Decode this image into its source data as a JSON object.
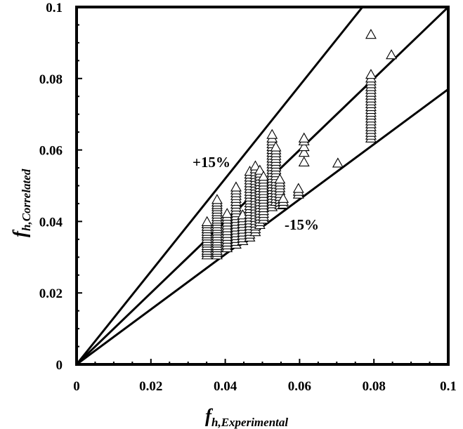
{
  "chart_data": {
    "type": "scatter",
    "title": "",
    "xlabel": {
      "main": "f",
      "sub": "h,Experimental"
    },
    "ylabel": {
      "main": "f",
      "sub": "h,Correlated"
    },
    "xlim": [
      0,
      0.1
    ],
    "ylim": [
      0,
      0.1
    ],
    "x_ticks": [
      "0",
      "0.02",
      "0.04",
      "0.06",
      "0.08",
      "0.1"
    ],
    "y_ticks": [
      "0",
      "0.02",
      "0.04",
      "0.06",
      "0.08",
      "0.1"
    ],
    "grid": false,
    "legend": "none",
    "marker": "open-triangle",
    "reference_lines": [
      {
        "name": "+15%",
        "slope": 1.3
      },
      {
        "name": "parity",
        "slope": 1.0
      },
      {
        "name": "-15%",
        "slope": 0.77
      }
    ],
    "annotations": [
      "+15%",
      "-15%"
    ],
    "points": [
      [
        0.0351,
        0.0305
      ],
      [
        0.0351,
        0.0312
      ],
      [
        0.0351,
        0.0318
      ],
      [
        0.0351,
        0.0325
      ],
      [
        0.0351,
        0.0331
      ],
      [
        0.0351,
        0.0338
      ],
      [
        0.0351,
        0.0344
      ],
      [
        0.0351,
        0.0351
      ],
      [
        0.0351,
        0.0358
      ],
      [
        0.0351,
        0.0364
      ],
      [
        0.0351,
        0.0371
      ],
      [
        0.0351,
        0.0378
      ],
      [
        0.0351,
        0.0385
      ],
      [
        0.0351,
        0.0392
      ],
      [
        0.0351,
        0.0398
      ],
      [
        0.0378,
        0.0305
      ],
      [
        0.0378,
        0.0312
      ],
      [
        0.0378,
        0.0318
      ],
      [
        0.0378,
        0.0325
      ],
      [
        0.0378,
        0.0331
      ],
      [
        0.0378,
        0.0338
      ],
      [
        0.0378,
        0.0344
      ],
      [
        0.0378,
        0.0351
      ],
      [
        0.0378,
        0.0358
      ],
      [
        0.0378,
        0.0365
      ],
      [
        0.0378,
        0.0372
      ],
      [
        0.0378,
        0.0378
      ],
      [
        0.0378,
        0.0385
      ],
      [
        0.0378,
        0.0392
      ],
      [
        0.0378,
        0.0399
      ],
      [
        0.0378,
        0.0405
      ],
      [
        0.0378,
        0.0412
      ],
      [
        0.0378,
        0.0419
      ],
      [
        0.0378,
        0.0426
      ],
      [
        0.0378,
        0.0433
      ],
      [
        0.0378,
        0.044
      ],
      [
        0.0378,
        0.0446
      ],
      [
        0.0378,
        0.0453
      ],
      [
        0.0378,
        0.046
      ],
      [
        0.0405,
        0.0325
      ],
      [
        0.0405,
        0.0333
      ],
      [
        0.0405,
        0.0341
      ],
      [
        0.0405,
        0.0349
      ],
      [
        0.0405,
        0.0357
      ],
      [
        0.0405,
        0.0365
      ],
      [
        0.0405,
        0.0373
      ],
      [
        0.0405,
        0.0381
      ],
      [
        0.0405,
        0.0389
      ],
      [
        0.0405,
        0.0397
      ],
      [
        0.0405,
        0.0405
      ],
      [
        0.0405,
        0.0413
      ],
      [
        0.0405,
        0.0421
      ],
      [
        0.0429,
        0.0335
      ],
      [
        0.0429,
        0.0343
      ],
      [
        0.0429,
        0.0351
      ],
      [
        0.0429,
        0.0359
      ],
      [
        0.0429,
        0.0367
      ],
      [
        0.0429,
        0.0375
      ],
      [
        0.0429,
        0.0383
      ],
      [
        0.0429,
        0.0391
      ],
      [
        0.0429,
        0.0399
      ],
      [
        0.0429,
        0.0407
      ],
      [
        0.0429,
        0.0415
      ],
      [
        0.0429,
        0.0423
      ],
      [
        0.0429,
        0.0431
      ],
      [
        0.0429,
        0.0439
      ],
      [
        0.0429,
        0.0447
      ],
      [
        0.0429,
        0.0455
      ],
      [
        0.0429,
        0.0463
      ],
      [
        0.0429,
        0.0471
      ],
      [
        0.0429,
        0.0479
      ],
      [
        0.0429,
        0.0487
      ],
      [
        0.0429,
        0.0495
      ],
      [
        0.0447,
        0.0345
      ],
      [
        0.0447,
        0.0353
      ],
      [
        0.0447,
        0.0361
      ],
      [
        0.0447,
        0.0369
      ],
      [
        0.0447,
        0.0377
      ],
      [
        0.0447,
        0.0385
      ],
      [
        0.0447,
        0.0393
      ],
      [
        0.0447,
        0.0401
      ],
      [
        0.0447,
        0.0409
      ],
      [
        0.0447,
        0.0417
      ],
      [
        0.0466,
        0.0355
      ],
      [
        0.0466,
        0.0363
      ],
      [
        0.0466,
        0.0371
      ],
      [
        0.0466,
        0.0379
      ],
      [
        0.0466,
        0.0387
      ],
      [
        0.0466,
        0.0395
      ],
      [
        0.0466,
        0.0403
      ],
      [
        0.0466,
        0.0411
      ],
      [
        0.0466,
        0.0419
      ],
      [
        0.0466,
        0.0427
      ],
      [
        0.0466,
        0.0435
      ],
      [
        0.0466,
        0.0443
      ],
      [
        0.0466,
        0.0451
      ],
      [
        0.0466,
        0.0459
      ],
      [
        0.0466,
        0.0467
      ],
      [
        0.0466,
        0.0475
      ],
      [
        0.0466,
        0.0483
      ],
      [
        0.0466,
        0.0491
      ],
      [
        0.0466,
        0.0499
      ],
      [
        0.0466,
        0.0507
      ],
      [
        0.0466,
        0.0515
      ],
      [
        0.0466,
        0.0523
      ],
      [
        0.0466,
        0.0531
      ],
      [
        0.0466,
        0.0539
      ],
      [
        0.0481,
        0.037
      ],
      [
        0.0481,
        0.0378
      ],
      [
        0.0481,
        0.0386
      ],
      [
        0.0481,
        0.0394
      ],
      [
        0.0481,
        0.0402
      ],
      [
        0.0481,
        0.041
      ],
      [
        0.0481,
        0.0418
      ],
      [
        0.0481,
        0.0426
      ],
      [
        0.0481,
        0.0434
      ],
      [
        0.0481,
        0.0442
      ],
      [
        0.0481,
        0.045
      ],
      [
        0.0481,
        0.0458
      ],
      [
        0.0481,
        0.0466
      ],
      [
        0.0481,
        0.0474
      ],
      [
        0.0481,
        0.0482
      ],
      [
        0.0481,
        0.049
      ],
      [
        0.0481,
        0.0498
      ],
      [
        0.0481,
        0.0506
      ],
      [
        0.0481,
        0.0514
      ],
      [
        0.0481,
        0.0522
      ],
      [
        0.0481,
        0.053
      ],
      [
        0.0481,
        0.0538
      ],
      [
        0.0481,
        0.0546
      ],
      [
        0.0481,
        0.0554
      ],
      [
        0.0493,
        0.039
      ],
      [
        0.0493,
        0.0398
      ],
      [
        0.0493,
        0.0406
      ],
      [
        0.0493,
        0.0414
      ],
      [
        0.0493,
        0.0422
      ],
      [
        0.0493,
        0.043
      ],
      [
        0.0493,
        0.0438
      ],
      [
        0.0493,
        0.0446
      ],
      [
        0.0493,
        0.0454
      ],
      [
        0.0493,
        0.0462
      ],
      [
        0.0493,
        0.047
      ],
      [
        0.0493,
        0.0478
      ],
      [
        0.0493,
        0.0486
      ],
      [
        0.0493,
        0.0494
      ],
      [
        0.0493,
        0.0502
      ],
      [
        0.0493,
        0.051
      ],
      [
        0.0493,
        0.0518
      ],
      [
        0.0493,
        0.0526
      ],
      [
        0.0493,
        0.0534
      ],
      [
        0.0493,
        0.0542
      ],
      [
        0.0503,
        0.0405
      ],
      [
        0.0503,
        0.0413
      ],
      [
        0.0503,
        0.0421
      ],
      [
        0.0503,
        0.0429
      ],
      [
        0.0503,
        0.0437
      ],
      [
        0.0503,
        0.0445
      ],
      [
        0.0503,
        0.0453
      ],
      [
        0.0503,
        0.0461
      ],
      [
        0.0503,
        0.0469
      ],
      [
        0.0503,
        0.0477
      ],
      [
        0.0503,
        0.0485
      ],
      [
        0.0503,
        0.0493
      ],
      [
        0.0503,
        0.0501
      ],
      [
        0.0503,
        0.0509
      ],
      [
        0.0503,
        0.0517
      ],
      [
        0.0503,
        0.0525
      ],
      [
        0.0526,
        0.044
      ],
      [
        0.0526,
        0.0448
      ],
      [
        0.0526,
        0.0456
      ],
      [
        0.0526,
        0.0464
      ],
      [
        0.0526,
        0.0472
      ],
      [
        0.0526,
        0.048
      ],
      [
        0.0526,
        0.0488
      ],
      [
        0.0526,
        0.0496
      ],
      [
        0.0526,
        0.0504
      ],
      [
        0.0526,
        0.0512
      ],
      [
        0.0526,
        0.052
      ],
      [
        0.0526,
        0.0528
      ],
      [
        0.0526,
        0.0536
      ],
      [
        0.0526,
        0.0544
      ],
      [
        0.0526,
        0.0552
      ],
      [
        0.0526,
        0.056
      ],
      [
        0.0526,
        0.0568
      ],
      [
        0.0526,
        0.0576
      ],
      [
        0.0526,
        0.0584
      ],
      [
        0.0526,
        0.0592
      ],
      [
        0.0526,
        0.06
      ],
      [
        0.0526,
        0.0608
      ],
      [
        0.0526,
        0.0616
      ],
      [
        0.0526,
        0.0624
      ],
      [
        0.0526,
        0.0632
      ],
      [
        0.0526,
        0.0642
      ],
      [
        0.0536,
        0.0455
      ],
      [
        0.0536,
        0.0463
      ],
      [
        0.0536,
        0.0471
      ],
      [
        0.0536,
        0.0479
      ],
      [
        0.0536,
        0.0487
      ],
      [
        0.0536,
        0.0495
      ],
      [
        0.0536,
        0.0503
      ],
      [
        0.0536,
        0.0511
      ],
      [
        0.0536,
        0.0519
      ],
      [
        0.0536,
        0.0527
      ],
      [
        0.0536,
        0.0535
      ],
      [
        0.0536,
        0.0543
      ],
      [
        0.0536,
        0.0551
      ],
      [
        0.0536,
        0.0559
      ],
      [
        0.0536,
        0.0567
      ],
      [
        0.0536,
        0.0575
      ],
      [
        0.0536,
        0.0583
      ],
      [
        0.0536,
        0.0591
      ],
      [
        0.0536,
        0.0599
      ],
      [
        0.0536,
        0.0607
      ],
      [
        0.0547,
        0.0445
      ],
      [
        0.0547,
        0.0453
      ],
      [
        0.0547,
        0.0461
      ],
      [
        0.0547,
        0.0469
      ],
      [
        0.0547,
        0.0477
      ],
      [
        0.0547,
        0.0485
      ],
      [
        0.0547,
        0.0493
      ],
      [
        0.0547,
        0.0501
      ],
      [
        0.0547,
        0.0509
      ],
      [
        0.0547,
        0.0517
      ],
      [
        0.0556,
        0.0447
      ],
      [
        0.0556,
        0.0455
      ],
      [
        0.0556,
        0.0463
      ],
      [
        0.0597,
        0.0475
      ],
      [
        0.0597,
        0.0483
      ],
      [
        0.0597,
        0.0491
      ],
      [
        0.0612,
        0.0565
      ],
      [
        0.0612,
        0.0592
      ],
      [
        0.0612,
        0.0608
      ],
      [
        0.0612,
        0.0624
      ],
      [
        0.0612,
        0.0632
      ],
      [
        0.0703,
        0.0562
      ],
      [
        0.0792,
        0.0632
      ],
      [
        0.0792,
        0.064
      ],
      [
        0.0792,
        0.0648
      ],
      [
        0.0792,
        0.0656
      ],
      [
        0.0792,
        0.0664
      ],
      [
        0.0792,
        0.0672
      ],
      [
        0.0792,
        0.068
      ],
      [
        0.0792,
        0.0688
      ],
      [
        0.0792,
        0.0696
      ],
      [
        0.0792,
        0.0704
      ],
      [
        0.0792,
        0.0712
      ],
      [
        0.0792,
        0.072
      ],
      [
        0.0792,
        0.0728
      ],
      [
        0.0792,
        0.0736
      ],
      [
        0.0792,
        0.0744
      ],
      [
        0.0792,
        0.0752
      ],
      [
        0.0792,
        0.076
      ],
      [
        0.0792,
        0.0768
      ],
      [
        0.0792,
        0.0776
      ],
      [
        0.0792,
        0.0784
      ],
      [
        0.0792,
        0.0792
      ],
      [
        0.0792,
        0.08
      ],
      [
        0.0792,
        0.081
      ],
      [
        0.0792,
        0.0922
      ],
      [
        0.0847,
        0.0865
      ]
    ]
  }
}
